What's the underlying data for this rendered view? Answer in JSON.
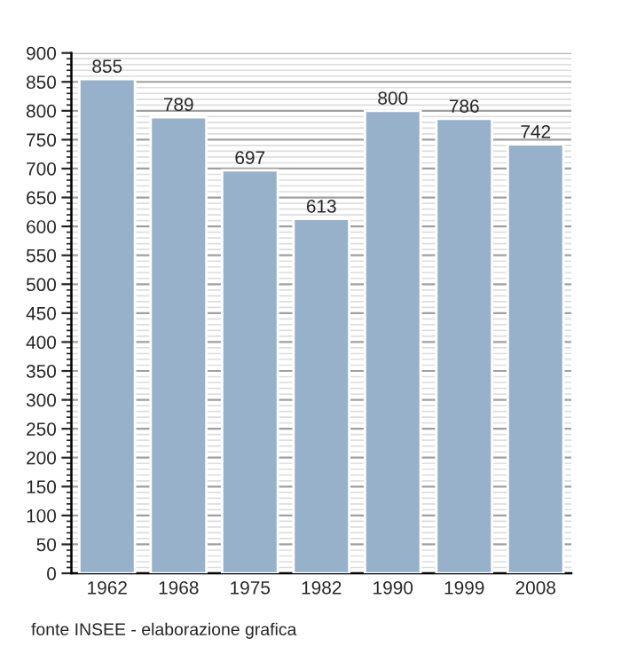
{
  "chart_data": {
    "type": "bar",
    "categories": [
      "1962",
      "1968",
      "1975",
      "1982",
      "1990",
      "1999",
      "2008"
    ],
    "values": [
      855,
      789,
      697,
      613,
      800,
      786,
      742
    ],
    "color": "#98b1cb",
    "ylim": [
      0,
      900
    ],
    "yticks": [
      0,
      50,
      100,
      150,
      200,
      250,
      300,
      350,
      400,
      450,
      500,
      550,
      600,
      650,
      700,
      750,
      800,
      850,
      900
    ],
    "grid": "y",
    "data_labels": true,
    "annotations": [
      "fonte INSEE - elaborazione grafica"
    ]
  }
}
